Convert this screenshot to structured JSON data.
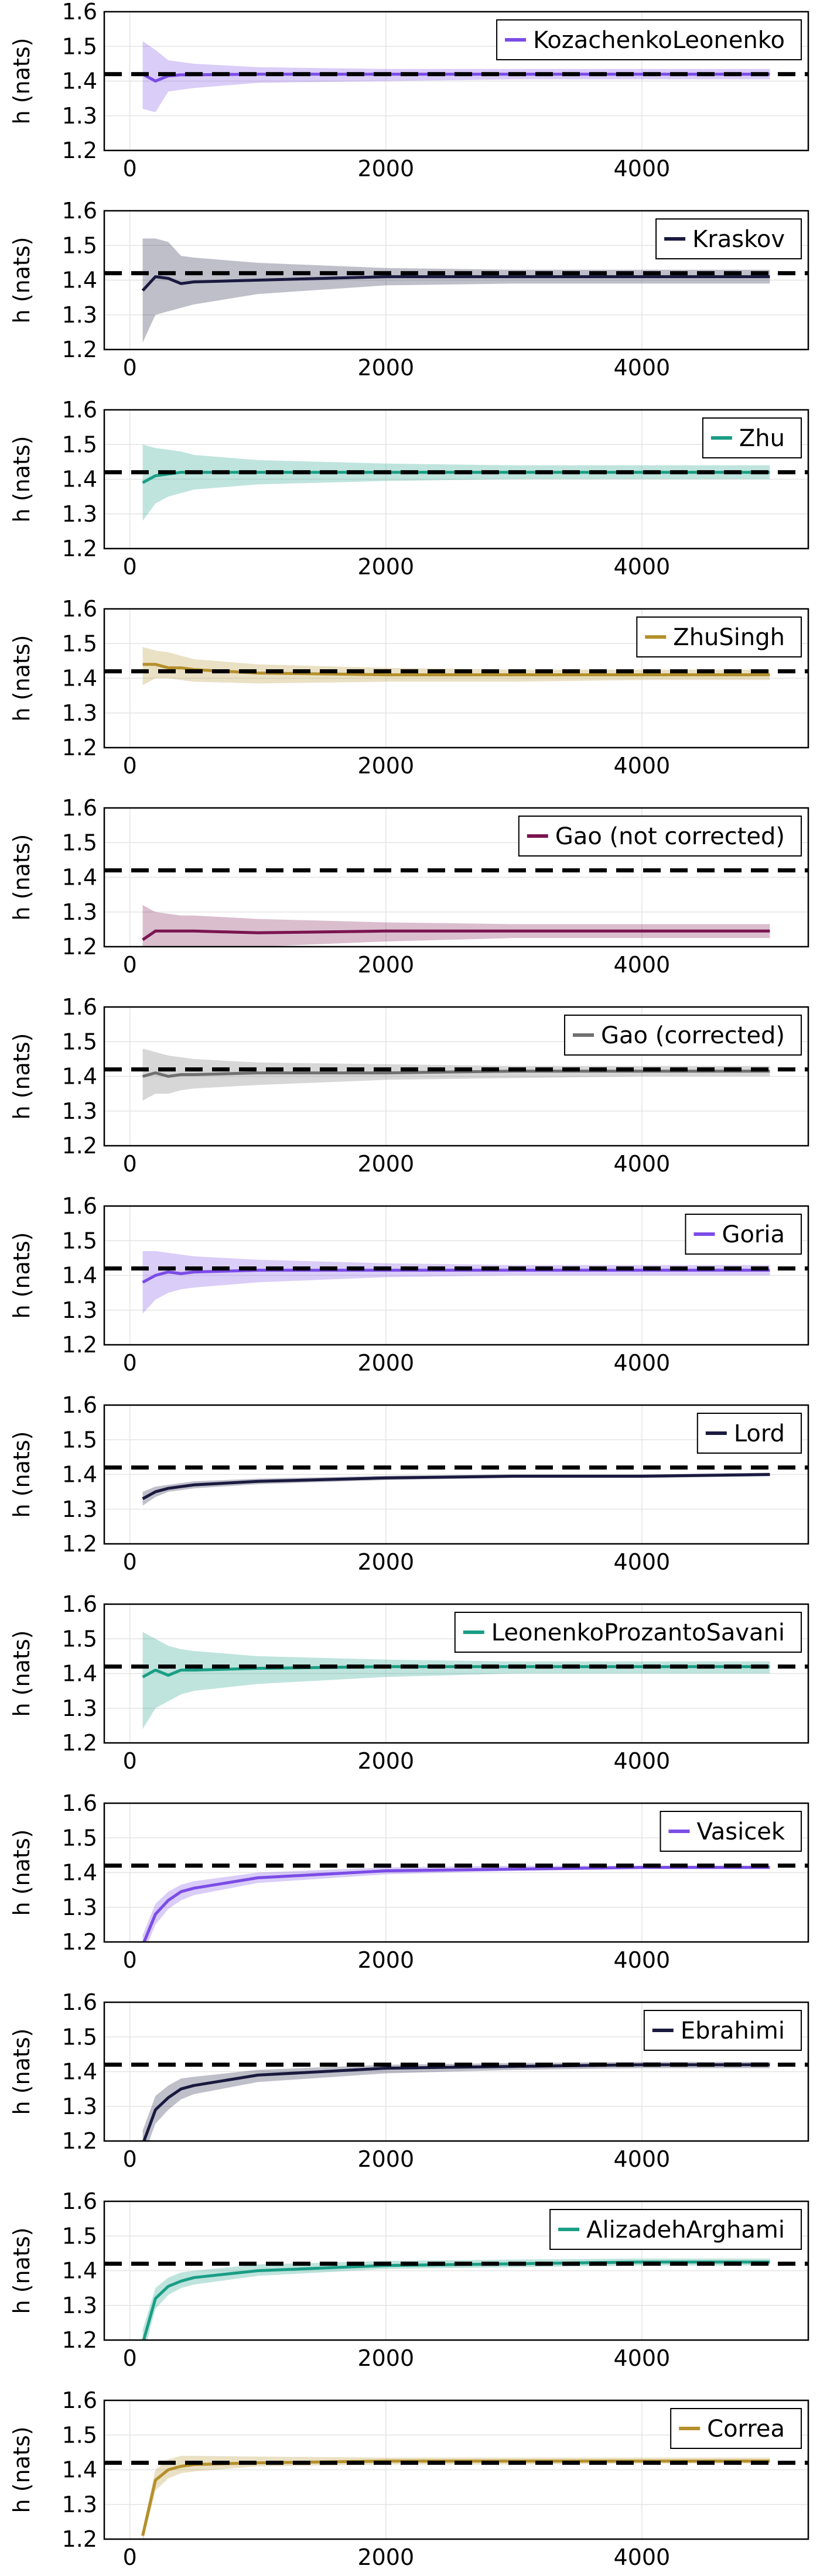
{
  "reference_value": 1.42,
  "colors": {
    "purple": "#7b4ce6",
    "navy": "#1a1a40",
    "teal": "#1a9e85",
    "gold": "#b48f2a",
    "maroon": "#7a1450",
    "gray": "#707070",
    "reference": "#000000",
    "grid": "#e4e4e4",
    "frame": "#000000"
  },
  "chart_data": [
    {
      "type": "line",
      "legend": "KozachenkoLeonenko",
      "color": "#7b4ce6",
      "ylabel": "h (nats)",
      "ylim": [
        1.2,
        1.6
      ],
      "yticks": [
        "1.2",
        "1.3",
        "1.4",
        "1.5",
        "1.6"
      ],
      "xlim": [
        -200,
        5300
      ],
      "xticks": [
        "0",
        "2000",
        "4000"
      ],
      "x": [
        100,
        200,
        300,
        400,
        500,
        1000,
        2000,
        3000,
        4000,
        5000
      ],
      "mean": [
        1.42,
        1.4,
        1.415,
        1.418,
        1.418,
        1.42,
        1.42,
        1.42,
        1.42,
        1.42
      ],
      "lower": [
        1.32,
        1.31,
        1.37,
        1.375,
        1.38,
        1.395,
        1.4,
        1.405,
        1.405,
        1.405
      ],
      "upper": [
        1.515,
        1.49,
        1.46,
        1.455,
        1.45,
        1.44,
        1.435,
        1.435,
        1.435,
        1.435
      ],
      "reference": 1.42,
      "legend_position": "top-right"
    },
    {
      "type": "line",
      "legend": "Kraskov",
      "color": "#1a1a40",
      "ylabel": "h (nats)",
      "ylim": [
        1.2,
        1.6
      ],
      "yticks": [
        "1.2",
        "1.3",
        "1.4",
        "1.5",
        "1.6"
      ],
      "xlim": [
        -200,
        5300
      ],
      "xticks": [
        "0",
        "2000",
        "4000"
      ],
      "x": [
        100,
        200,
        300,
        400,
        500,
        1000,
        2000,
        3000,
        4000,
        5000
      ],
      "mean": [
        1.37,
        1.41,
        1.405,
        1.39,
        1.395,
        1.4,
        1.41,
        1.41,
        1.41,
        1.41
      ],
      "lower": [
        1.22,
        1.3,
        1.31,
        1.32,
        1.33,
        1.36,
        1.385,
        1.39,
        1.39,
        1.39
      ],
      "upper": [
        1.52,
        1.52,
        1.51,
        1.47,
        1.465,
        1.45,
        1.435,
        1.43,
        1.43,
        1.43
      ],
      "reference": 1.42,
      "legend_position": "top-right"
    },
    {
      "type": "line",
      "legend": "Zhu",
      "color": "#1a9e85",
      "ylabel": "h (nats)",
      "ylim": [
        1.2,
        1.6
      ],
      "yticks": [
        "1.2",
        "1.3",
        "1.4",
        "1.5",
        "1.6"
      ],
      "xlim": [
        -200,
        5300
      ],
      "xticks": [
        "0",
        "2000",
        "4000"
      ],
      "x": [
        100,
        200,
        300,
        400,
        500,
        1000,
        2000,
        3000,
        4000,
        5000
      ],
      "mean": [
        1.39,
        1.41,
        1.415,
        1.42,
        1.42,
        1.42,
        1.42,
        1.42,
        1.42,
        1.42
      ],
      "lower": [
        1.28,
        1.33,
        1.35,
        1.36,
        1.37,
        1.385,
        1.395,
        1.4,
        1.4,
        1.4
      ],
      "upper": [
        1.5,
        1.49,
        1.485,
        1.48,
        1.47,
        1.455,
        1.445,
        1.44,
        1.44,
        1.44
      ],
      "reference": 1.42,
      "legend_position": "top-right"
    },
    {
      "type": "line",
      "legend": "ZhuSingh",
      "color": "#b48f2a",
      "ylabel": "h (nats)",
      "ylim": [
        1.2,
        1.6
      ],
      "yticks": [
        "1.2",
        "1.3",
        "1.4",
        "1.5",
        "1.6"
      ],
      "xlim": [
        -200,
        5300
      ],
      "xticks": [
        "0",
        "2000",
        "4000"
      ],
      "x": [
        100,
        200,
        300,
        400,
        500,
        1000,
        2000,
        3000,
        4000,
        5000
      ],
      "mean": [
        1.44,
        1.44,
        1.43,
        1.43,
        1.425,
        1.415,
        1.41,
        1.41,
        1.41,
        1.41
      ],
      "lower": [
        1.38,
        1.4,
        1.4,
        1.395,
        1.39,
        1.385,
        1.39,
        1.39,
        1.395,
        1.395
      ],
      "upper": [
        1.49,
        1.48,
        1.475,
        1.465,
        1.455,
        1.44,
        1.43,
        1.425,
        1.425,
        1.425
      ],
      "reference": 1.42,
      "legend_position": "top-right"
    },
    {
      "type": "line",
      "legend": "Gao (not corrected)",
      "color": "#7a1450",
      "ylabel": "h (nats)",
      "ylim": [
        1.2,
        1.6
      ],
      "yticks": [
        "1.2",
        "1.3",
        "1.4",
        "1.5",
        "1.6"
      ],
      "xlim": [
        -200,
        5300
      ],
      "xticks": [
        "0",
        "2000",
        "4000"
      ],
      "x": [
        100,
        200,
        300,
        400,
        500,
        1000,
        2000,
        3000,
        4000,
        5000
      ],
      "mean": [
        1.22,
        1.245,
        1.245,
        1.245,
        1.245,
        1.24,
        1.245,
        1.245,
        1.245,
        1.245
      ],
      "lower": [
        1.2,
        1.2,
        1.2,
        1.2,
        1.2,
        1.2,
        1.215,
        1.225,
        1.225,
        1.225
      ],
      "upper": [
        1.32,
        1.3,
        1.295,
        1.29,
        1.29,
        1.28,
        1.27,
        1.265,
        1.265,
        1.265
      ],
      "reference": 1.42,
      "legend_position": "top-right"
    },
    {
      "type": "line",
      "legend": "Gao (corrected)",
      "color": "#707070",
      "ylabel": "h (nats)",
      "ylim": [
        1.2,
        1.6
      ],
      "yticks": [
        "1.2",
        "1.3",
        "1.4",
        "1.5",
        "1.6"
      ],
      "xlim": [
        -200,
        5300
      ],
      "xticks": [
        "0",
        "2000",
        "4000"
      ],
      "x": [
        100,
        200,
        300,
        400,
        500,
        1000,
        2000,
        3000,
        4000,
        5000
      ],
      "mean": [
        1.4,
        1.41,
        1.4,
        1.405,
        1.405,
        1.41,
        1.41,
        1.415,
        1.415,
        1.415
      ],
      "lower": [
        1.33,
        1.35,
        1.35,
        1.36,
        1.365,
        1.375,
        1.39,
        1.395,
        1.4,
        1.4
      ],
      "upper": [
        1.48,
        1.47,
        1.46,
        1.455,
        1.45,
        1.44,
        1.435,
        1.43,
        1.43,
        1.43
      ],
      "reference": 1.42,
      "legend_position": "top-right"
    },
    {
      "type": "line",
      "legend": "Goria",
      "color": "#7b4ce6",
      "ylabel": "h (nats)",
      "ylim": [
        1.2,
        1.6
      ],
      "yticks": [
        "1.2",
        "1.3",
        "1.4",
        "1.5",
        "1.6"
      ],
      "xlim": [
        -200,
        5300
      ],
      "xticks": [
        "0",
        "2000",
        "4000"
      ],
      "x": [
        100,
        200,
        300,
        400,
        500,
        1000,
        2000,
        3000,
        4000,
        5000
      ],
      "mean": [
        1.38,
        1.4,
        1.41,
        1.405,
        1.41,
        1.415,
        1.415,
        1.415,
        1.415,
        1.415
      ],
      "lower": [
        1.29,
        1.33,
        1.35,
        1.36,
        1.365,
        1.38,
        1.395,
        1.4,
        1.4,
        1.4
      ],
      "upper": [
        1.47,
        1.47,
        1.465,
        1.46,
        1.455,
        1.445,
        1.435,
        1.43,
        1.43,
        1.43
      ],
      "reference": 1.42,
      "legend_position": "top-right"
    },
    {
      "type": "line",
      "legend": "Lord",
      "color": "#1a1a40",
      "ylabel": "h (nats)",
      "ylim": [
        1.2,
        1.6
      ],
      "yticks": [
        "1.2",
        "1.3",
        "1.4",
        "1.5",
        "1.6"
      ],
      "xlim": [
        -200,
        5300
      ],
      "xticks": [
        "0",
        "2000",
        "4000"
      ],
      "x": [
        100,
        200,
        300,
        400,
        500,
        1000,
        2000,
        3000,
        4000,
        5000
      ],
      "mean": [
        1.33,
        1.35,
        1.36,
        1.365,
        1.37,
        1.38,
        1.39,
        1.395,
        1.395,
        1.4
      ],
      "lower": [
        1.31,
        1.335,
        1.35,
        1.355,
        1.36,
        1.372,
        1.384,
        1.39,
        1.39,
        1.395
      ],
      "upper": [
        1.35,
        1.365,
        1.37,
        1.375,
        1.38,
        1.388,
        1.396,
        1.4,
        1.4,
        1.405
      ],
      "reference": 1.42,
      "legend_position": "top-right"
    },
    {
      "type": "line",
      "legend": "LeonenkoProzantoSavani",
      "color": "#1a9e85",
      "ylabel": "h (nats)",
      "ylim": [
        1.2,
        1.6
      ],
      "yticks": [
        "1.2",
        "1.3",
        "1.4",
        "1.5",
        "1.6"
      ],
      "xlim": [
        -200,
        5300
      ],
      "xticks": [
        "0",
        "2000",
        "4000"
      ],
      "x": [
        100,
        200,
        300,
        400,
        500,
        1000,
        2000,
        3000,
        4000,
        5000
      ],
      "mean": [
        1.39,
        1.41,
        1.395,
        1.41,
        1.41,
        1.415,
        1.42,
        1.42,
        1.42,
        1.42
      ],
      "lower": [
        1.24,
        1.3,
        1.32,
        1.34,
        1.35,
        1.37,
        1.39,
        1.4,
        1.4,
        1.4
      ],
      "upper": [
        1.52,
        1.5,
        1.48,
        1.47,
        1.465,
        1.45,
        1.44,
        1.435,
        1.435,
        1.435
      ],
      "reference": 1.42,
      "legend_position": "top-right"
    },
    {
      "type": "line",
      "legend": "Vasicek",
      "color": "#7b4ce6",
      "ylabel": "h (nats)",
      "ylim": [
        1.2,
        1.6
      ],
      "yticks": [
        "1.2",
        "1.3",
        "1.4",
        "1.5",
        "1.6"
      ],
      "xlim": [
        -200,
        5300
      ],
      "xticks": [
        "0",
        "2000",
        "4000"
      ],
      "x": [
        100,
        200,
        300,
        400,
        500,
        1000,
        2000,
        3000,
        4000,
        5000
      ],
      "mean": [
        1.19,
        1.28,
        1.32,
        1.345,
        1.355,
        1.385,
        1.405,
        1.41,
        1.415,
        1.415
      ],
      "lower": [
        1.16,
        1.25,
        1.295,
        1.32,
        1.335,
        1.37,
        1.395,
        1.405,
        1.41,
        1.41
      ],
      "upper": [
        1.22,
        1.31,
        1.345,
        1.365,
        1.375,
        1.4,
        1.415,
        1.42,
        1.42,
        1.42
      ],
      "reference": 1.42,
      "legend_position": "top-right"
    },
    {
      "type": "line",
      "legend": "Ebrahimi",
      "color": "#1a1a40",
      "ylabel": "h (nats)",
      "ylim": [
        1.2,
        1.6
      ],
      "yticks": [
        "1.2",
        "1.3",
        "1.4",
        "1.5",
        "1.6"
      ],
      "xlim": [
        -200,
        5300
      ],
      "xticks": [
        "0",
        "2000",
        "4000"
      ],
      "x": [
        100,
        200,
        300,
        400,
        500,
        1000,
        2000,
        3000,
        4000,
        5000
      ],
      "mean": [
        1.19,
        1.29,
        1.325,
        1.35,
        1.36,
        1.39,
        1.41,
        1.415,
        1.42,
        1.42
      ],
      "lower": [
        1.15,
        1.25,
        1.29,
        1.32,
        1.335,
        1.37,
        1.395,
        1.405,
        1.41,
        1.41
      ],
      "upper": [
        1.23,
        1.33,
        1.36,
        1.38,
        1.385,
        1.405,
        1.42,
        1.425,
        1.428,
        1.428
      ],
      "reference": 1.42,
      "legend_position": "top-right"
    },
    {
      "type": "line",
      "legend": "AlizadehArghami",
      "color": "#1a9e85",
      "ylabel": "h (nats)",
      "ylim": [
        1.2,
        1.6
      ],
      "yticks": [
        "1.2",
        "1.3",
        "1.4",
        "1.5",
        "1.6"
      ],
      "xlim": [
        -200,
        5300
      ],
      "xticks": [
        "0",
        "2000",
        "4000"
      ],
      "x": [
        100,
        200,
        300,
        400,
        500,
        1000,
        2000,
        3000,
        4000,
        5000
      ],
      "mean": [
        1.19,
        1.32,
        1.355,
        1.37,
        1.38,
        1.4,
        1.415,
        1.42,
        1.425,
        1.425
      ],
      "lower": [
        1.15,
        1.29,
        1.33,
        1.35,
        1.36,
        1.385,
        1.405,
        1.41,
        1.415,
        1.415
      ],
      "upper": [
        1.23,
        1.35,
        1.38,
        1.395,
        1.4,
        1.418,
        1.428,
        1.432,
        1.435,
        1.435
      ],
      "reference": 1.42,
      "legend_position": "top-right"
    },
    {
      "type": "line",
      "legend": "Correa",
      "color": "#b48f2a",
      "ylabel": "h (nats)",
      "ylim": [
        1.2,
        1.6
      ],
      "yticks": [
        "1.2",
        "1.3",
        "1.4",
        "1.5",
        "1.6"
      ],
      "xlim": [
        -200,
        5300
      ],
      "xticks": [
        "0",
        "2000",
        "4000"
      ],
      "x": [
        100,
        200,
        300,
        400,
        500,
        1000,
        2000,
        3000,
        4000,
        5000
      ],
      "mean": [
        1.21,
        1.37,
        1.4,
        1.41,
        1.415,
        1.42,
        1.425,
        1.425,
        1.425,
        1.425
      ],
      "lower": [
        1.19,
        1.34,
        1.375,
        1.39,
        1.395,
        1.41,
        1.415,
        1.415,
        1.418,
        1.418
      ],
      "upper": [
        1.23,
        1.4,
        1.43,
        1.44,
        1.44,
        1.438,
        1.435,
        1.435,
        1.435,
        1.435
      ],
      "reference": 1.42,
      "legend_position": "top-right"
    }
  ]
}
